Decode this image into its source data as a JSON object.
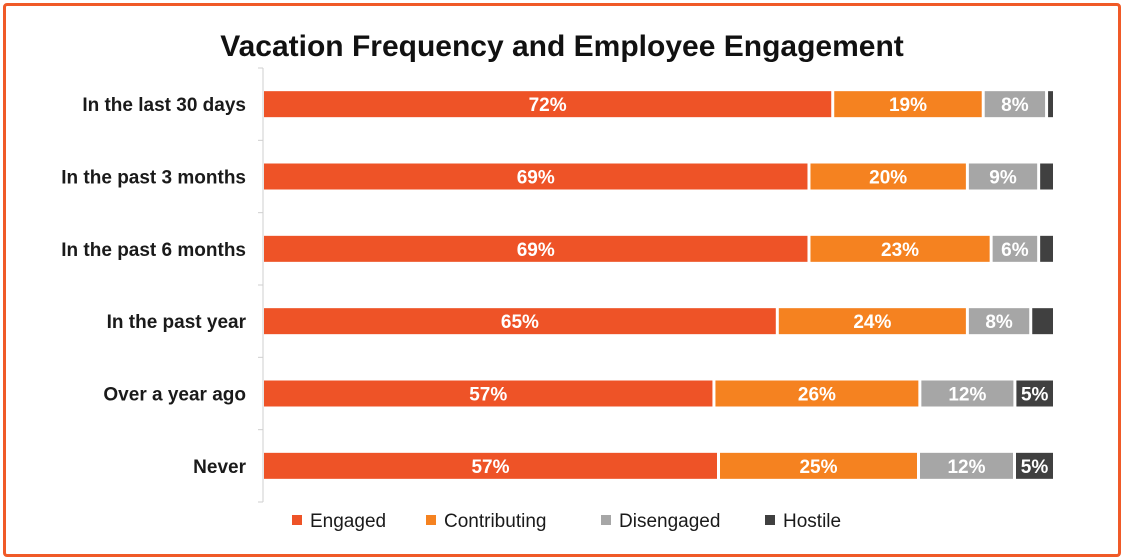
{
  "chart_data": {
    "type": "bar",
    "orientation": "horizontal",
    "stacked": true,
    "title": "Vacation Frequency and Employee Engagement",
    "categories": [
      "In the last 30 days",
      "In the past 3 months",
      "In the past 6 months",
      "In the past year",
      "Over a year ago",
      "Never"
    ],
    "series": [
      {
        "name": "Engaged",
        "color": "#ee5327",
        "values": [
          72,
          69,
          69,
          65,
          57,
          57
        ],
        "labels": [
          "72%",
          "69%",
          "69%",
          "65%",
          "57%",
          "57%"
        ]
      },
      {
        "name": "Contributing",
        "color": "#f58220",
        "values": [
          19,
          20,
          23,
          24,
          26,
          25
        ],
        "labels": [
          "19%",
          "20%",
          "23%",
          "24%",
          "26%",
          "25%"
        ]
      },
      {
        "name": "Disengaged",
        "color": "#a6a6a6",
        "values": [
          8,
          9,
          6,
          8,
          12,
          12
        ],
        "labels": [
          "8%",
          "9%",
          "6%",
          "8%",
          "12%",
          "12%"
        ]
      },
      {
        "name": "Hostile",
        "color": "#404040",
        "values": [
          1,
          2,
          2,
          3,
          5,
          5
        ],
        "labels": [
          "",
          "",
          "",
          "",
          "5%",
          "5%"
        ]
      }
    ],
    "xlim": [
      0,
      100
    ],
    "grid": false,
    "legend": "bottom",
    "frame_color": "#f05a28"
  }
}
